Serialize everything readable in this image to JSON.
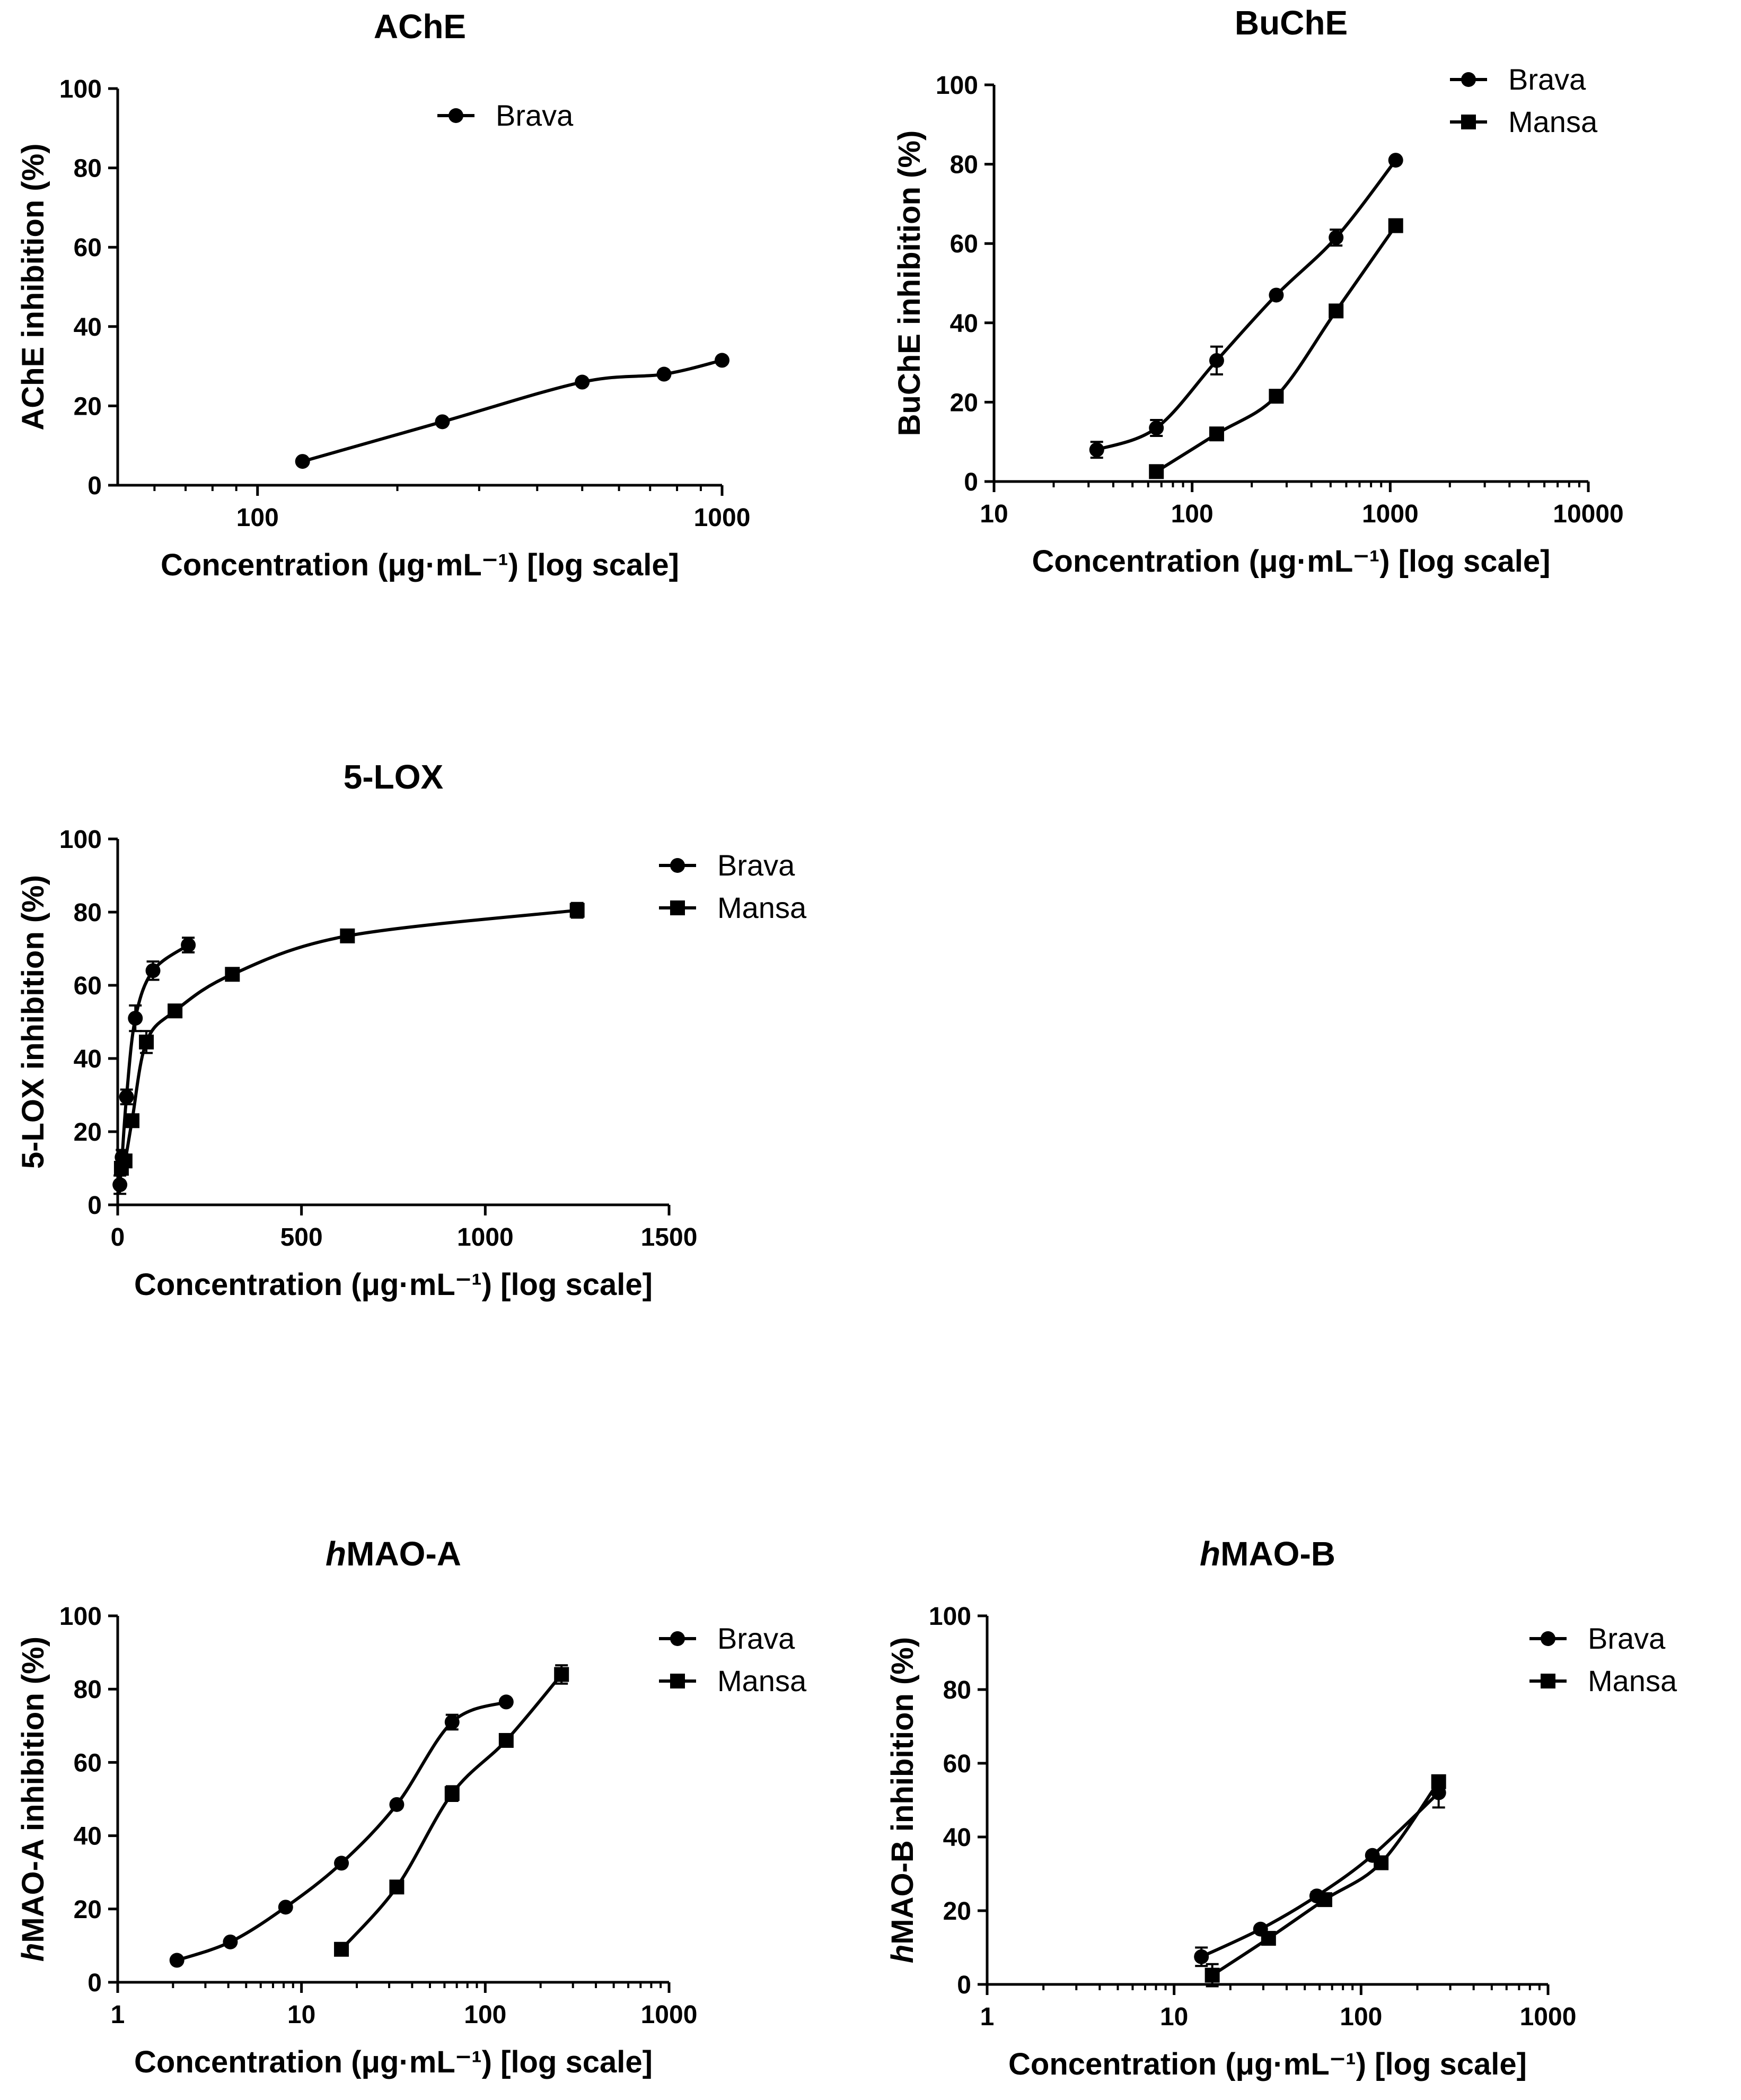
{
  "chart_data": [
    {
      "id": "ache",
      "type": "line",
      "title": "AChE",
      "title_italic_prefix": "",
      "xlabel": "Concentration (μg·mL⁻¹) [log scale]",
      "ylabel": "AChE inhibition (%)",
      "xscale": "log",
      "xlim": [
        50,
        1000
      ],
      "ylim": [
        0,
        100
      ],
      "xticks": [
        100,
        1000
      ],
      "xtick_labels": [
        "100",
        "1000"
      ],
      "yticks": [
        0,
        20,
        40,
        60,
        80,
        100
      ],
      "ytick_labels": [
        "0",
        "20",
        "40",
        "60",
        "80",
        "100"
      ],
      "legend_position": "top-right",
      "series": [
        {
          "name": "Brava",
          "marker": "circle",
          "points": [
            [
              125,
              6
            ],
            [
              250,
              16
            ],
            [
              500,
              26
            ],
            [
              750,
              28
            ],
            [
              1000,
              31.5
            ]
          ],
          "errors": [
            0.5,
            0.5,
            0.5,
            0.5,
            0.5
          ]
        }
      ]
    },
    {
      "id": "buche",
      "type": "line",
      "title": "BuChE",
      "title_italic_prefix": "",
      "xlabel": "Concentration (μg·mL⁻¹) [log scale]",
      "ylabel": "BuChE inhibition (%)",
      "xscale": "log",
      "xlim": [
        10,
        10000
      ],
      "ylim": [
        0,
        100
      ],
      "xticks": [
        10,
        100,
        1000,
        10000
      ],
      "xtick_labels": [
        "10",
        "100",
        "1000",
        "10000"
      ],
      "yticks": [
        0,
        20,
        40,
        60,
        80,
        100
      ],
      "ytick_labels": [
        "0",
        "20",
        "40",
        "60",
        "80",
        "100"
      ],
      "legend_position": "top-right",
      "series": [
        {
          "name": "Brava",
          "marker": "circle",
          "points": [
            [
              33,
              8
            ],
            [
              66,
              13.5
            ],
            [
              133,
              30.5
            ],
            [
              266,
              47
            ],
            [
              533,
              61.5
            ],
            [
              1066,
              81
            ]
          ],
          "errors": [
            2,
            2,
            3.5,
            0.8,
            2,
            0.5
          ]
        },
        {
          "name": "Mansa",
          "marker": "square",
          "points": [
            [
              66,
              2.5
            ],
            [
              133,
              12
            ],
            [
              266,
              21.5
            ],
            [
              533,
              43
            ],
            [
              1066,
              64.5
            ]
          ],
          "errors": [
            0.5,
            0.5,
            0.8,
            0.8,
            1.5
          ]
        }
      ]
    },
    {
      "id": "lox",
      "type": "line",
      "title": "5-LOX",
      "title_italic_prefix": "",
      "xlabel": "Concentration (μg·mL⁻¹) [log scale]",
      "ylabel": "5-LOX inhibition (%)",
      "xscale": "linear",
      "xlim": [
        0,
        1500
      ],
      "ylim": [
        0,
        100
      ],
      "xticks": [
        0,
        500,
        1000,
        1500
      ],
      "xtick_labels": [
        "0",
        "500",
        "1000",
        "1500"
      ],
      "yticks": [
        0,
        20,
        40,
        60,
        80,
        100
      ],
      "ytick_labels": [
        "0",
        "20",
        "40",
        "60",
        "80",
        "100"
      ],
      "legend_position": "top-right",
      "series": [
        {
          "name": "Brava",
          "marker": "circle",
          "points": [
            [
              6,
              5.5
            ],
            [
              12,
              13
            ],
            [
              24,
              29.5
            ],
            [
              48,
              51
            ],
            [
              96,
              64
            ],
            [
              192,
              71
            ]
          ],
          "errors": [
            2.5,
            2,
            2,
            3.5,
            2.5,
            2
          ]
        },
        {
          "name": "Mansa",
          "marker": "square",
          "points": [
            [
              10,
              10
            ],
            [
              20,
              12
            ],
            [
              39,
              23
            ],
            [
              78,
              44.5
            ],
            [
              156,
              53
            ],
            [
              312,
              63
            ],
            [
              625,
              73.5
            ],
            [
              1250,
              80.5
            ]
          ],
          "errors": [
            1.5,
            1.5,
            1.5,
            3,
            1,
            1,
            1,
            2
          ]
        }
      ]
    },
    {
      "id": "mao_a",
      "type": "line",
      "title": "MAO-A",
      "title_italic_prefix": "h",
      "xlabel": "Concentration (μg·mL⁻¹) [log scale]",
      "ylabel": "MAO-A inhibition (%)",
      "ylabel_italic_prefix": "h",
      "xscale": "log",
      "xlim": [
        1,
        1000
      ],
      "ylim": [
        0,
        100
      ],
      "xticks": [
        1,
        10,
        100,
        1000
      ],
      "xtick_labels": [
        "1",
        "10",
        "100",
        "1000"
      ],
      "yticks": [
        0,
        20,
        40,
        60,
        80,
        100
      ],
      "ytick_labels": [
        "0",
        "20",
        "40",
        "60",
        "80",
        "100"
      ],
      "legend_position": "top-right",
      "series": [
        {
          "name": "Brava",
          "marker": "circle",
          "points": [
            [
              2.1,
              6
            ],
            [
              4.1,
              11
            ],
            [
              8.2,
              20.5
            ],
            [
              16.5,
              32.5
            ],
            [
              33,
              48.5
            ],
            [
              66,
              71
            ],
            [
              130,
              76.5
            ]
          ],
          "errors": [
            0.5,
            0.5,
            0.8,
            0.8,
            0.8,
            2,
            0.5
          ]
        },
        {
          "name": "Mansa",
          "marker": "square",
          "points": [
            [
              16.5,
              9
            ],
            [
              33,
              26
            ],
            [
              66,
              51.5
            ],
            [
              130,
              66
            ],
            [
              260,
              84
            ]
          ],
          "errors": [
            0.5,
            0.8,
            2,
            0.8,
            2.5
          ]
        }
      ]
    },
    {
      "id": "mao_b",
      "type": "line",
      "title": "MAO-B",
      "title_italic_prefix": "h",
      "xlabel": "Concentration (μg·mL⁻¹) [log scale]",
      "ylabel": "MAO-B inhibition (%)",
      "ylabel_italic_prefix": "h",
      "xscale": "log",
      "xlim": [
        1,
        1000
      ],
      "ylim": [
        0,
        100
      ],
      "xticks": [
        1,
        10,
        100,
        1000
      ],
      "xtick_labels": [
        "1",
        "10",
        "100",
        "1000"
      ],
      "yticks": [
        0,
        20,
        40,
        60,
        80,
        100
      ],
      "ytick_labels": [
        "0",
        "20",
        "40",
        "60",
        "80",
        "100"
      ],
      "legend_position": "top-right",
      "series": [
        {
          "name": "Brava",
          "marker": "circle",
          "points": [
            [
              14,
              7.5
            ],
            [
              29,
              15
            ],
            [
              58,
              24
            ],
            [
              115,
              35
            ],
            [
              260,
              52
            ]
          ],
          "errors": [
            2.5,
            0.8,
            1,
            0.8,
            4
          ]
        },
        {
          "name": "Mansa",
          "marker": "square",
          "points": [
            [
              16,
              2.5
            ],
            [
              32,
              12.5
            ],
            [
              64,
              23
            ],
            [
              128,
              33
            ],
            [
              260,
              55
            ]
          ],
          "errors": [
            3,
            1,
            1,
            0.8,
            1
          ]
        }
      ]
    }
  ]
}
